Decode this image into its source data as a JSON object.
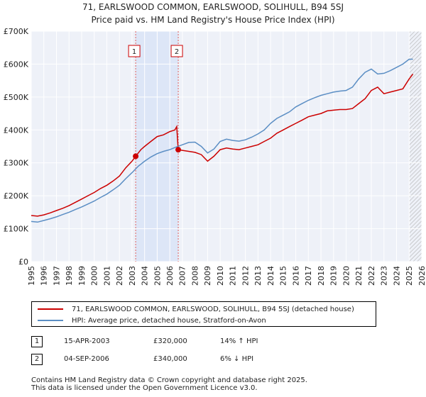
{
  "chart_data": {
    "type": "line",
    "title": "71, EARLSWOOD COMMON, EARLSWOOD, SOLIHULL, B94 5SJ",
    "subtitle": "Price paid vs. HM Land Registry's House Price Index (HPI)",
    "xlabel": "",
    "ylabel": "",
    "xlim": [
      1995,
      2026
    ],
    "ylim": [
      0,
      700000
    ],
    "yticks": [
      0,
      100000,
      200000,
      300000,
      400000,
      500000,
      600000,
      700000
    ],
    "ytick_labels": [
      "£0",
      "£100K",
      "£200K",
      "£300K",
      "£400K",
      "£500K",
      "£600K",
      "£700K"
    ],
    "xticks": [
      1995,
      1996,
      1997,
      1998,
      1999,
      2000,
      2001,
      2002,
      2003,
      2004,
      2005,
      2006,
      2007,
      2008,
      2009,
      2010,
      2011,
      2012,
      2013,
      2014,
      2015,
      2016,
      2017,
      2018,
      2019,
      2020,
      2021,
      2022,
      2023,
      2024,
      2025,
      2026
    ],
    "grid": true,
    "shaded_range": [
      2003.29,
      2006.67
    ],
    "forecast_start": 2025.0,
    "series": [
      {
        "name": "71, EARLSWOOD COMMON, EARLSWOOD, SOLIHULL, B94 5SJ (detached house)",
        "color": "#cc0000",
        "x": [
          1995,
          1995.5,
          1996,
          1996.5,
          1997,
          1997.5,
          1998,
          1998.5,
          1999,
          1999.5,
          2000,
          2000.5,
          2001,
          2001.5,
          2002,
          2002.5,
          2003,
          2003.29,
          2003.7,
          2004,
          2004.5,
          2005,
          2005.5,
          2006,
          2006.4,
          2006.55,
          2006.67,
          2007,
          2007.5,
          2008,
          2008.5,
          2009,
          2009.5,
          2010,
          2010.5,
          2011,
          2011.5,
          2012,
          2012.5,
          2013,
          2013.5,
          2014,
          2014.5,
          2015,
          2015.5,
          2016,
          2016.5,
          2017,
          2017.5,
          2018,
          2018.5,
          2019,
          2019.5,
          2020,
          2020.5,
          2021,
          2021.5,
          2022,
          2022.5,
          2023,
          2023.5,
          2024,
          2024.5,
          2025,
          2025.3
        ],
        "values": [
          140000,
          138000,
          142000,
          148000,
          155000,
          162000,
          170000,
          180000,
          190000,
          200000,
          210000,
          222000,
          232000,
          245000,
          260000,
          285000,
          305000,
          320000,
          340000,
          350000,
          365000,
          380000,
          385000,
          395000,
          400000,
          410000,
          340000,
          338000,
          335000,
          332000,
          325000,
          305000,
          320000,
          340000,
          345000,
          342000,
          340000,
          345000,
          350000,
          355000,
          365000,
          375000,
          390000,
          400000,
          410000,
          420000,
          430000,
          440000,
          445000,
          450000,
          458000,
          460000,
          462000,
          462000,
          465000,
          480000,
          495000,
          520000,
          530000,
          510000,
          515000,
          520000,
          525000,
          555000,
          570000
        ]
      },
      {
        "name": "HPI: Average price, detached house, Stratford-on-Avon",
        "color": "#5b8ec4",
        "x": [
          1995,
          1995.5,
          1996,
          1996.5,
          1997,
          1997.5,
          1998,
          1998.5,
          1999,
          1999.5,
          2000,
          2000.5,
          2001,
          2001.5,
          2002,
          2002.5,
          2003,
          2003.5,
          2004,
          2004.5,
          2005,
          2005.5,
          2006,
          2006.5,
          2007,
          2007.5,
          2008,
          2008.5,
          2009,
          2009.5,
          2010,
          2010.5,
          2011,
          2011.5,
          2012,
          2012.5,
          2013,
          2013.5,
          2014,
          2014.5,
          2015,
          2015.5,
          2016,
          2016.5,
          2017,
          2017.5,
          2018,
          2018.5,
          2019,
          2019.5,
          2020,
          2020.5,
          2021,
          2021.5,
          2022,
          2022.5,
          2023,
          2023.5,
          2024,
          2024.5,
          2025,
          2025.3
        ],
        "values": [
          122000,
          120000,
          125000,
          130000,
          136000,
          143000,
          150000,
          158000,
          166000,
          175000,
          184000,
          195000,
          205000,
          218000,
          232000,
          252000,
          270000,
          290000,
          305000,
          318000,
          328000,
          335000,
          340000,
          348000,
          355000,
          362000,
          363000,
          350000,
          330000,
          342000,
          365000,
          372000,
          368000,
          366000,
          370000,
          378000,
          388000,
          400000,
          420000,
          435000,
          445000,
          455000,
          470000,
          480000,
          490000,
          498000,
          505000,
          510000,
          515000,
          518000,
          520000,
          530000,
          555000,
          575000,
          585000,
          570000,
          572000,
          580000,
          590000,
          600000,
          615000,
          615000
        ]
      }
    ],
    "sales": [
      {
        "id": "1",
        "x": 2003.29,
        "value": 320000
      },
      {
        "id": "2",
        "x": 2006.67,
        "value": 340000
      }
    ]
  },
  "legend": {
    "items": [
      {
        "label": "71, EARLSWOOD COMMON, EARLSWOOD, SOLIHULL, B94 5SJ (detached house)",
        "color": "#cc0000"
      },
      {
        "label": "HPI: Average price, detached house, Stratford-on-Avon",
        "color": "#5b8ec4"
      }
    ]
  },
  "sales_table": [
    {
      "id": "1",
      "date": "15-APR-2003",
      "price": "£320,000",
      "hpi": "14% ↑ HPI"
    },
    {
      "id": "2",
      "date": "04-SEP-2006",
      "price": "£340,000",
      "hpi": "6% ↓ HPI"
    }
  ],
  "footer": {
    "line1": "Contains HM Land Registry data © Crown copyright and database right 2025.",
    "line2": "This data is licensed under the Open Government Licence v3.0."
  }
}
